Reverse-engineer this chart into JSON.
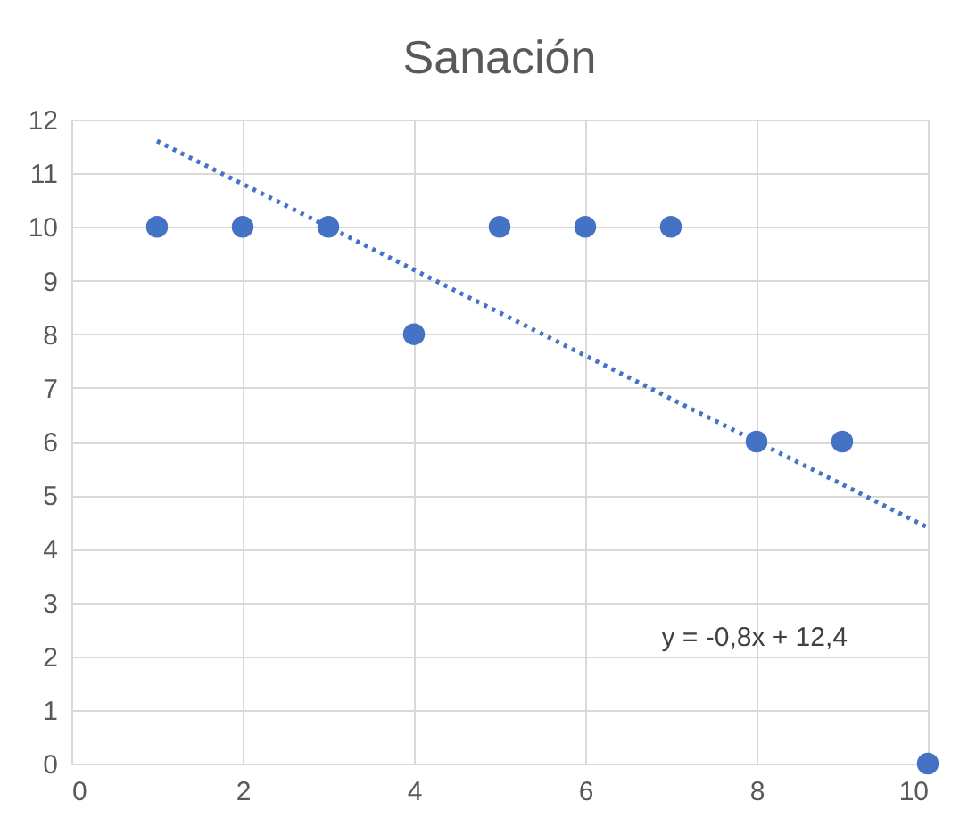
{
  "chart_data": {
    "type": "scatter",
    "title": "Sanación",
    "series": [
      {
        "color": "#4472c4",
        "x": [
          1,
          2,
          3,
          4,
          5,
          6,
          7,
          8,
          9,
          10
        ],
        "values": [
          10,
          10,
          10,
          8,
          10,
          10,
          10,
          6,
          6,
          0
        ],
        "marker": "circle"
      },
      {
        "type": "line",
        "color": "#4472c4",
        "x": [
          1,
          10
        ],
        "values": [
          11.6,
          4.4
        ],
        "line_style": "dotted",
        "marker": "none"
      }
    ],
    "annotations": [
      "y = -0,8x + 12,4"
    ],
    "xlim": [
      0,
      10
    ],
    "xticks": [
      0,
      2,
      4,
      6,
      8,
      10
    ],
    "ylim": [
      0,
      12
    ],
    "yticks": [
      0,
      1,
      2,
      3,
      4,
      5,
      6,
      7,
      8,
      9,
      10,
      11,
      12
    ],
    "grid": true
  }
}
